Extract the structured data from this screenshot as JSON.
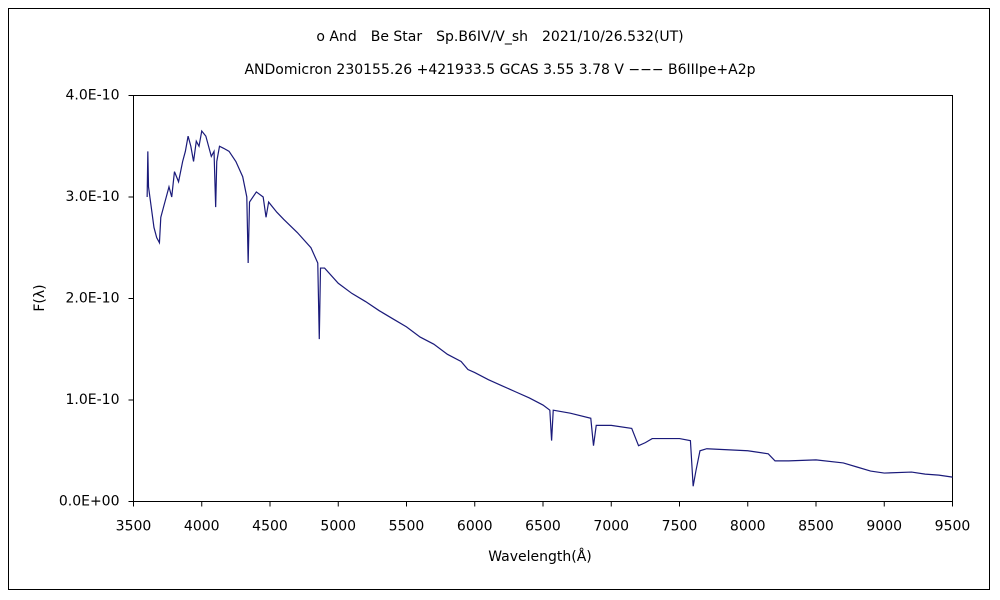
{
  "chart_data": {
    "type": "line",
    "title": "ο And　Be Star　Sp.B6IV/V_sh　2021/10/26.532(UT)",
    "subtitle": "ANDomicron 230155.26 +421933.5 GCAS 3.55 3.78 V −−− B6IIIpe+A2p",
    "x_label": "Wavelength(Å)",
    "y_label": "F(λ)",
    "x": [
      3600,
      3605,
      3610,
      3630,
      3650,
      3670,
      3690,
      3700,
      3720,
      3740,
      3760,
      3780,
      3800,
      3830,
      3860,
      3880,
      3900,
      3920,
      3940,
      3960,
      3980,
      4000,
      4030,
      4050,
      4070,
      4090,
      4102,
      4110,
      4130,
      4160,
      4200,
      4250,
      4300,
      4330,
      4340,
      4350,
      4400,
      4450,
      4471,
      4490,
      4550,
      4600,
      4700,
      4800,
      4850,
      4861,
      4870,
      4900,
      5000,
      5100,
      5200,
      5300,
      5400,
      5500,
      5600,
      5700,
      5800,
      5900,
      5950,
      6000,
      6100,
      6200,
      6300,
      6400,
      6500,
      6550,
      6563,
      6575,
      6700,
      6850,
      6870,
      6890,
      7000,
      7150,
      7200,
      7250,
      7300,
      7500,
      7580,
      7600,
      7620,
      7650,
      7700,
      8000,
      8150,
      8200,
      8300,
      8500,
      8700,
      8800,
      8900,
      9000,
      9200,
      9300,
      9400,
      9500
    ],
    "series": [
      {
        "name": "F(λ)",
        "color": "#1a1a7a",
        "values": [
          3e-10,
          3.45e-10,
          3.1e-10,
          2.9e-10,
          2.7e-10,
          2.6e-10,
          2.55e-10,
          2.8e-10,
          2.9e-10,
          3e-10,
          3.1e-10,
          3e-10,
          3.25e-10,
          3.15e-10,
          3.35e-10,
          3.45e-10,
          3.6e-10,
          3.5e-10,
          3.35e-10,
          3.55e-10,
          3.5e-10,
          3.65e-10,
          3.6e-10,
          3.5e-10,
          3.4e-10,
          3.45e-10,
          2.9e-10,
          3.35e-10,
          3.5e-10,
          3.48e-10,
          3.45e-10,
          3.35e-10,
          3.2e-10,
          3e-10,
          2.35e-10,
          2.95e-10,
          3.05e-10,
          3e-10,
          2.8e-10,
          2.95e-10,
          2.85e-10,
          2.78e-10,
          2.65e-10,
          2.5e-10,
          2.35e-10,
          1.6e-10,
          2.3e-10,
          2.3e-10,
          2.15e-10,
          2.05e-10,
          1.97e-10,
          1.88e-10,
          1.8e-10,
          1.72e-10,
          1.62e-10,
          1.55e-10,
          1.45e-10,
          1.38e-10,
          1.3e-10,
          1.27e-10,
          1.2e-10,
          1.14e-10,
          1.08e-10,
          1.02e-10,
          9.5e-11,
          9e-11,
          6e-11,
          9e-11,
          8.7e-11,
          8.2e-11,
          5.5e-11,
          7.5e-11,
          7.5e-11,
          7.2e-11,
          5.5e-11,
          5.8e-11,
          6.2e-11,
          6.2e-11,
          6e-11,
          1.5e-11,
          3e-11,
          5e-11,
          5.2e-11,
          5e-11,
          4.7e-11,
          4e-11,
          4e-11,
          4.1e-11,
          3.8e-11,
          3.4e-11,
          3e-11,
          2.8e-11,
          2.9e-11,
          2.7e-11,
          2.6e-11,
          2.4e-11
        ]
      }
    ],
    "xlim": [
      3500,
      9500
    ],
    "xticks": [
      3500,
      4000,
      4500,
      5000,
      5500,
      6000,
      6500,
      7000,
      7500,
      8000,
      8500,
      9000,
      9500
    ],
    "ylim": [
      0,
      4e-10
    ],
    "yticks": [
      {
        "value": 0,
        "label": "0.0E+00"
      },
      {
        "value": 1e-10,
        "label": "1.0E-10"
      },
      {
        "value": 2e-10,
        "label": "2.0E-10"
      },
      {
        "value": 3e-10,
        "label": "3.0E-10"
      },
      {
        "value": 4e-10,
        "label": "4.0E-10"
      }
    ],
    "grid": false
  }
}
